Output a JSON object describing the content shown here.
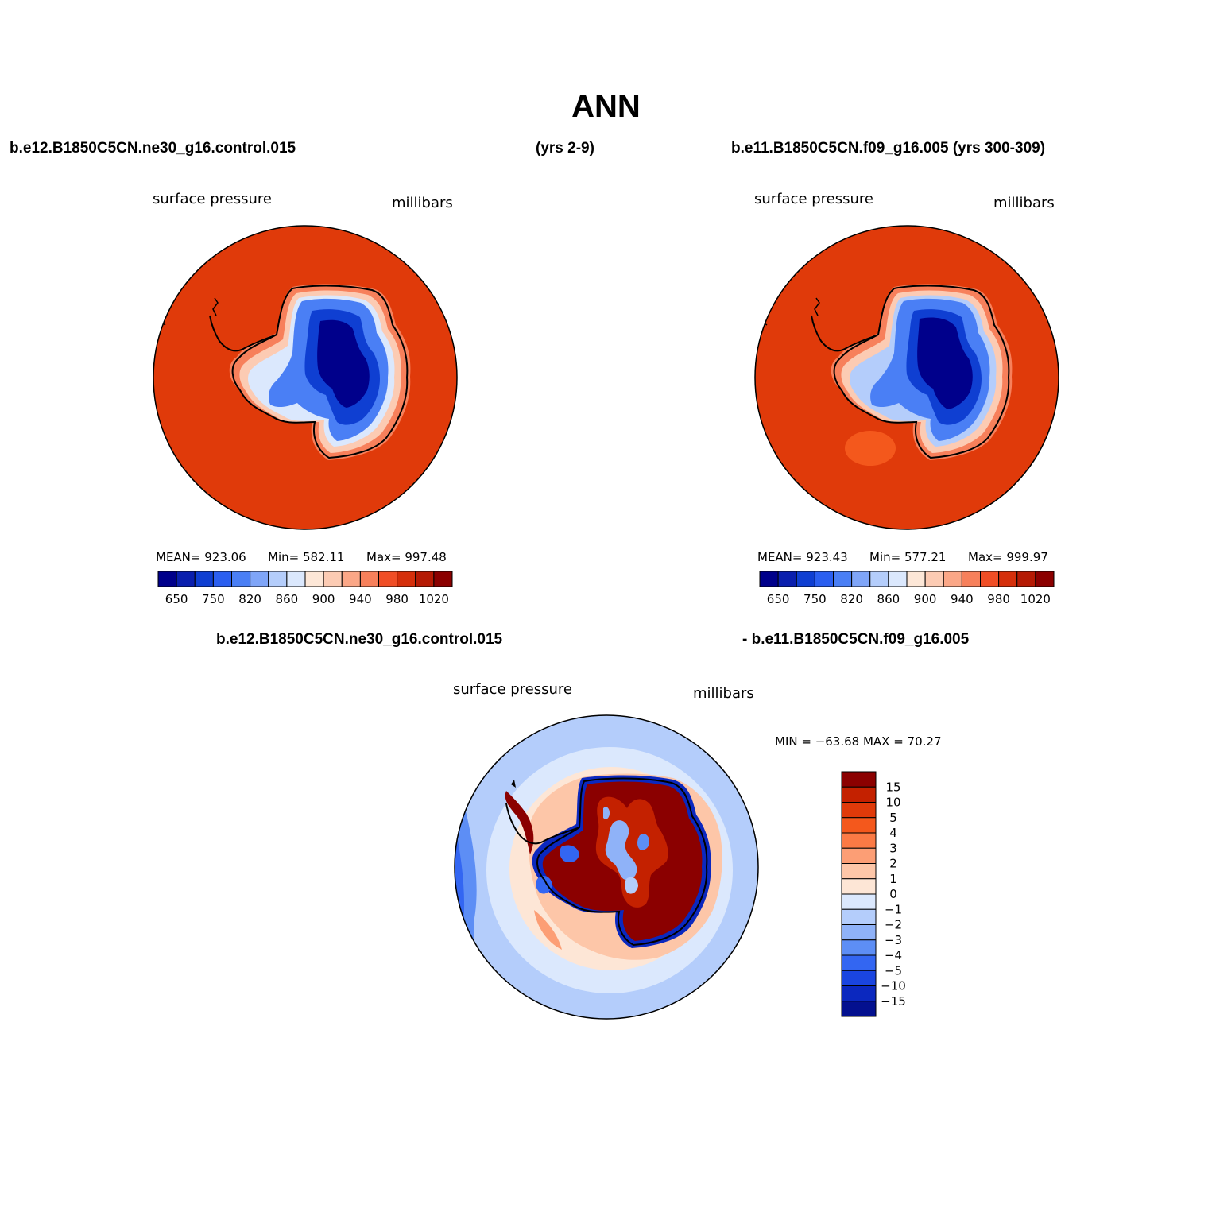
{
  "title": "ANN",
  "top_left": {
    "case": "b.e12.B1850C5CN.ne30_g16.control.015",
    "years": "(yrs 2-9)",
    "variable": "surface pressure",
    "units": "millibars",
    "stats": {
      "mean": "MEAN= 923.06",
      "min": "Min= 582.11",
      "max": "Max= 997.48"
    }
  },
  "top_right": {
    "case": "b.e11.B1850C5CN.f09_g16.005 (yrs 300-309)",
    "variable": "surface pressure",
    "units": "millibars",
    "stats": {
      "mean": "MEAN= 923.43",
      "min": "Min= 577.21",
      "max": "Max= 999.97"
    }
  },
  "difference": {
    "case_a": "b.e12.B1850C5CN.ne30_g16.control.015",
    "case_b": "- b.e11.B1850C5CN.f09_g16.005",
    "variable": "surface pressure",
    "units": "millibars",
    "minmax": "MIN = −63.68  MAX =   70.27"
  },
  "abs_colorbar": {
    "colors": [
      "#00008b",
      "#0a1fae",
      "#0f3fd2",
      "#2b5ff0",
      "#4a7ff5",
      "#7fa5f8",
      "#b4cdfb",
      "#dbe8fd",
      "#fde7d7",
      "#fccbb3",
      "#fba787",
      "#f7805b",
      "#f04e26",
      "#d52f0b",
      "#b51a04",
      "#8b0000"
    ],
    "labels": [
      "650",
      "750",
      "820",
      "860",
      "900",
      "940",
      "980",
      "1020"
    ]
  },
  "diff_colorbar": {
    "colors": [
      "#8b0000",
      "#c42100",
      "#e03a0a",
      "#f4581c",
      "#fb7a45",
      "#fc9e75",
      "#fdc6a8",
      "#fde6d6",
      "#dbe8fd",
      "#b4cdfb",
      "#8fb2f8",
      "#5d8ef5",
      "#3366f2",
      "#1a45e0",
      "#0b28bf",
      "#03108f"
    ],
    "labels": [
      "15",
      "10",
      "5",
      "4",
      "3",
      "2",
      "1",
      "0",
      "−1",
      "−2",
      "−3",
      "−4",
      "−5",
      "−10",
      "−15"
    ]
  }
}
